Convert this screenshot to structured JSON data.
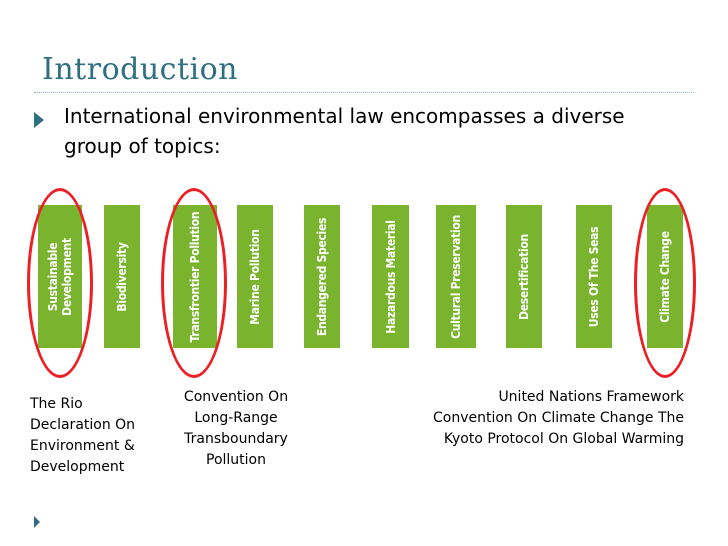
{
  "slide": {
    "title": "Introduction",
    "bullet": "International environmental law encompasses a diverse group of topics:"
  },
  "topics": [
    {
      "label": "Sustainable Development",
      "highlighted": true
    },
    {
      "label": "Biodiversity",
      "highlighted": false
    },
    {
      "label": "Transfrontier Pollution",
      "highlighted": true
    },
    {
      "label": "Marine Pollution",
      "highlighted": false
    },
    {
      "label": "Endangered Species",
      "highlighted": false
    },
    {
      "label": "Hazardous Material",
      "highlighted": false
    },
    {
      "label": "Cultural Preservation",
      "highlighted": false
    },
    {
      "label": "Desertification",
      "highlighted": false
    },
    {
      "label": "Uses Of The Seas",
      "highlighted": false
    },
    {
      "label": "Climate Change",
      "highlighted": true
    }
  ],
  "captions": {
    "rio": "The Rio Declaration On Environment & Development",
    "transboundary": "Convention On Long-Range Transboundary Pollution",
    "climate": "United Nations Framework Convention On Climate Change  The Kyoto Protocol On Global Warming"
  },
  "colors": {
    "title": "#2f6f82",
    "bar": "#7ab32d",
    "highlight_ring": "#ec1f24"
  }
}
